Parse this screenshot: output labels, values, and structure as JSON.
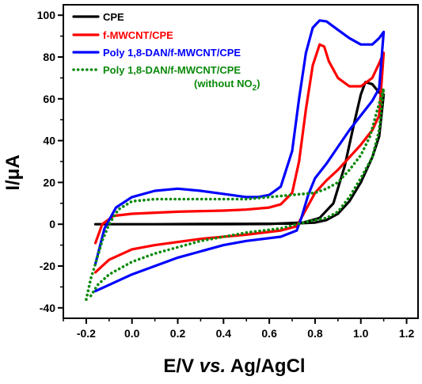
{
  "chart_data": {
    "type": "line",
    "title": "",
    "xlabel_parts": {
      "pre": "E/V ",
      "italic": "vs.",
      "post": " Ag/AgCl"
    },
    "ylabel": "I/μA",
    "xlim": [
      -0.3,
      1.25
    ],
    "ylim": [
      -45,
      105
    ],
    "xticks": [
      -0.2,
      0.0,
      0.2,
      0.4,
      0.6,
      0.8,
      1.0,
      1.2
    ],
    "xtick_labels": [
      "-0.2",
      "0.0",
      "0.2",
      "0.4",
      "0.6",
      "0.8",
      "1.0",
      "1.2"
    ],
    "yticks": [
      -40,
      -20,
      0,
      20,
      40,
      60,
      80,
      100
    ],
    "ytick_labels": [
      "-40",
      "-20",
      "0",
      "20",
      "40",
      "60",
      "80",
      "100"
    ],
    "grid": false,
    "legend_position": "top-left",
    "series": [
      {
        "name": "CPE",
        "color": "#000000",
        "dash": "solid",
        "points": [
          [
            -0.16,
            0.0
          ],
          [
            0.0,
            0.0
          ],
          [
            0.2,
            0.0
          ],
          [
            0.4,
            0.0
          ],
          [
            0.6,
            0.1
          ],
          [
            0.75,
            0.8
          ],
          [
            0.82,
            3
          ],
          [
            0.88,
            10
          ],
          [
            0.93,
            28
          ],
          [
            0.97,
            48
          ],
          [
            1.0,
            62
          ],
          [
            1.02,
            68
          ],
          [
            1.05,
            67
          ],
          [
            1.08,
            63
          ],
          [
            1.1,
            62
          ],
          [
            1.08,
            42
          ],
          [
            1.05,
            32
          ],
          [
            1.0,
            20
          ],
          [
            0.95,
            11
          ],
          [
            0.9,
            5
          ],
          [
            0.85,
            2
          ],
          [
            0.8,
            0.8
          ],
          [
            0.7,
            0.3
          ],
          [
            0.5,
            0.2
          ],
          [
            0.3,
            0.1
          ],
          [
            0.1,
            0.0
          ],
          [
            -0.16,
            0.0
          ]
        ]
      },
      {
        "name": "f-MWCNT/CPE",
        "color": "#ff0000",
        "dash": "solid",
        "points": [
          [
            -0.16,
            -9
          ],
          [
            -0.13,
            0
          ],
          [
            -0.08,
            4
          ],
          [
            0.0,
            5
          ],
          [
            0.2,
            6
          ],
          [
            0.4,
            6.5
          ],
          [
            0.5,
            7
          ],
          [
            0.6,
            8
          ],
          [
            0.65,
            9.5
          ],
          [
            0.7,
            15
          ],
          [
            0.73,
            30
          ],
          [
            0.76,
            55
          ],
          [
            0.79,
            76
          ],
          [
            0.82,
            86
          ],
          [
            0.84,
            85
          ],
          [
            0.86,
            78
          ],
          [
            0.9,
            70
          ],
          [
            0.95,
            66
          ],
          [
            1.0,
            66
          ],
          [
            1.05,
            70
          ],
          [
            1.08,
            77
          ],
          [
            1.1,
            82
          ],
          [
            1.08,
            52
          ],
          [
            1.05,
            45
          ],
          [
            1.0,
            38
          ],
          [
            0.95,
            32
          ],
          [
            0.9,
            26
          ],
          [
            0.85,
            21
          ],
          [
            0.8,
            15
          ],
          [
            0.75,
            5
          ],
          [
            0.72,
            -1
          ],
          [
            0.65,
            -3
          ],
          [
            0.5,
            -5
          ],
          [
            0.3,
            -7
          ],
          [
            0.1,
            -10
          ],
          [
            0.0,
            -12
          ],
          [
            -0.1,
            -17
          ],
          [
            -0.16,
            -23
          ]
        ]
      },
      {
        "name": "Poly 1,8-DAN/f-MWCNT/CPE",
        "color": "#0000ff",
        "dash": "solid",
        "points": [
          [
            -0.16,
            -19
          ],
          [
            -0.12,
            -2
          ],
          [
            -0.07,
            8
          ],
          [
            0.0,
            13
          ],
          [
            0.1,
            16
          ],
          [
            0.2,
            17
          ],
          [
            0.3,
            16
          ],
          [
            0.4,
            14.5
          ],
          [
            0.5,
            13
          ],
          [
            0.55,
            13
          ],
          [
            0.6,
            14
          ],
          [
            0.65,
            18
          ],
          [
            0.7,
            35
          ],
          [
            0.73,
            60
          ],
          [
            0.76,
            82
          ],
          [
            0.79,
            94
          ],
          [
            0.82,
            97.5
          ],
          [
            0.85,
            97
          ],
          [
            0.9,
            93
          ],
          [
            0.95,
            89
          ],
          [
            1.0,
            86
          ],
          [
            1.05,
            86
          ],
          [
            1.08,
            89
          ],
          [
            1.1,
            92
          ],
          [
            1.08,
            65
          ],
          [
            1.05,
            59
          ],
          [
            1.0,
            52
          ],
          [
            0.95,
            45
          ],
          [
            0.9,
            37
          ],
          [
            0.85,
            29
          ],
          [
            0.8,
            22
          ],
          [
            0.77,
            14
          ],
          [
            0.74,
            3
          ],
          [
            0.72,
            -3
          ],
          [
            0.65,
            -6
          ],
          [
            0.5,
            -8
          ],
          [
            0.4,
            -10
          ],
          [
            0.3,
            -13
          ],
          [
            0.2,
            -16
          ],
          [
            0.1,
            -20
          ],
          [
            0.0,
            -24
          ],
          [
            -0.1,
            -29
          ],
          [
            -0.16,
            -32
          ]
        ]
      },
      {
        "name": "Poly 1,8-DAN/f-MWCNT/CPE",
        "name_line2": "(without NO",
        "name_sub": "2",
        "name_end": ")",
        "color": "#0a8a0a",
        "dash": "dotted",
        "points": [
          [
            -0.2,
            -36
          ],
          [
            -0.18,
            -26
          ],
          [
            -0.16,
            -19
          ],
          [
            -0.13,
            -8
          ],
          [
            -0.1,
            0
          ],
          [
            -0.06,
            7
          ],
          [
            0.0,
            11
          ],
          [
            0.1,
            12
          ],
          [
            0.2,
            12
          ],
          [
            0.3,
            12
          ],
          [
            0.4,
            12
          ],
          [
            0.5,
            12
          ],
          [
            0.6,
            13
          ],
          [
            0.7,
            14
          ],
          [
            0.8,
            15
          ],
          [
            0.85,
            17
          ],
          [
            0.9,
            20
          ],
          [
            0.95,
            26
          ],
          [
            1.0,
            33
          ],
          [
            1.04,
            42
          ],
          [
            1.07,
            54
          ],
          [
            1.1,
            65
          ],
          [
            1.08,
            45
          ],
          [
            1.05,
            32
          ],
          [
            1.0,
            22
          ],
          [
            0.95,
            13
          ],
          [
            0.9,
            6
          ],
          [
            0.85,
            3
          ],
          [
            0.8,
            2
          ],
          [
            0.72,
            0
          ],
          [
            0.65,
            -2
          ],
          [
            0.5,
            -4
          ],
          [
            0.3,
            -8
          ],
          [
            0.1,
            -14
          ],
          [
            0.0,
            -18
          ],
          [
            -0.1,
            -24
          ],
          [
            -0.15,
            -29
          ],
          [
            -0.19,
            -36
          ]
        ]
      }
    ]
  }
}
